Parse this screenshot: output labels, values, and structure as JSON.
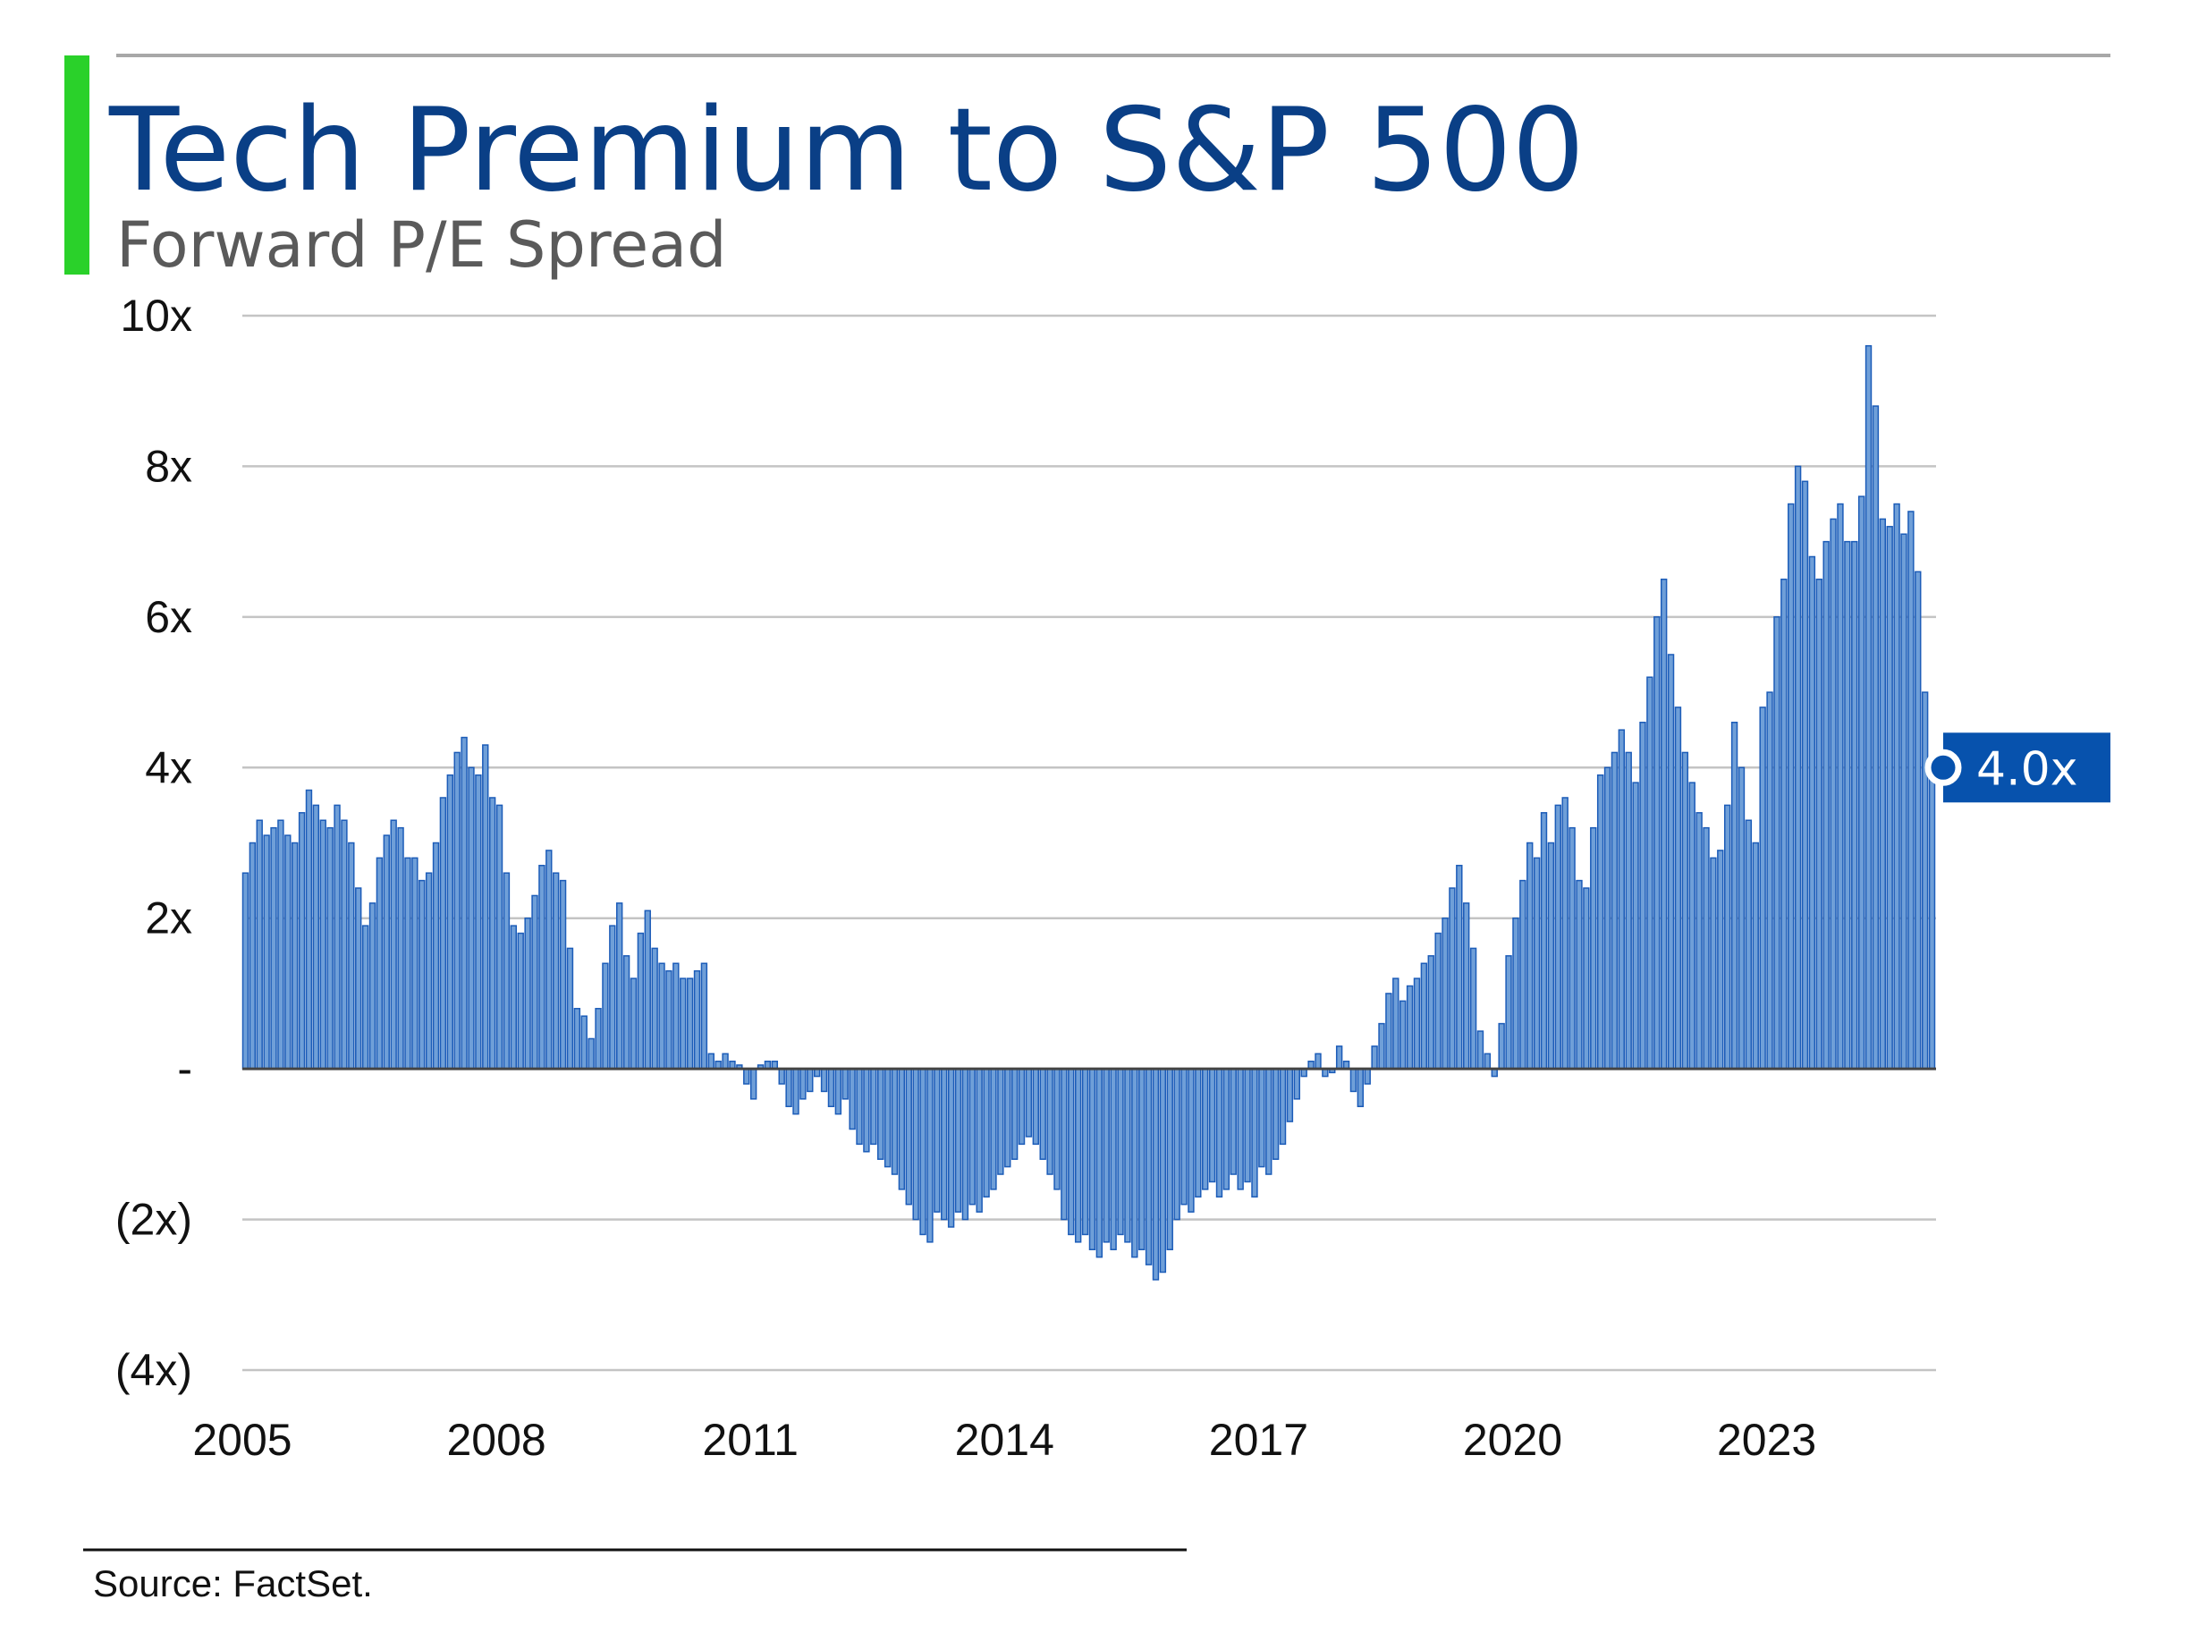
{
  "chart_data": {
    "type": "bar",
    "title": "Tech Premium to S&P 500",
    "subtitle": "Forward P/E Spread",
    "xlabel": "",
    "ylabel": "",
    "x_start": 2005,
    "x_end": 2025,
    "frequency": "monthly",
    "ylim": [
      -4,
      10
    ],
    "yticks": [
      10,
      8,
      6,
      4,
      2,
      0,
      -2,
      -4
    ],
    "ytick_labels": [
      "10x",
      "8x",
      "6x",
      "4x",
      "2x",
      "-",
      "(2x)",
      "(4x)"
    ],
    "xticks": [
      2005,
      2008,
      2011,
      2014,
      2017,
      2020,
      2023
    ],
    "xtick_labels": [
      "2005",
      "2008",
      "2011",
      "2014",
      "2017",
      "2020",
      "2023"
    ],
    "grid": true,
    "bar_color": "#6f9fd8",
    "bar_edge_color": "#1c5cb8",
    "values": [
      2.6,
      3.0,
      3.3,
      3.1,
      3.2,
      3.3,
      3.1,
      3.0,
      3.4,
      3.7,
      3.5,
      3.3,
      3.2,
      3.5,
      3.3,
      3.0,
      2.4,
      1.9,
      2.2,
      2.8,
      3.1,
      3.3,
      3.2,
      2.8,
      2.8,
      2.5,
      2.6,
      3.0,
      3.6,
      3.9,
      4.2,
      4.4,
      4.0,
      3.9,
      4.3,
      3.6,
      3.5,
      2.6,
      1.9,
      1.8,
      2.0,
      2.3,
      2.7,
      2.9,
      2.6,
      2.5,
      1.6,
      0.8,
      0.7,
      0.4,
      0.8,
      1.4,
      1.9,
      2.2,
      1.5,
      1.2,
      1.8,
      2.1,
      1.6,
      1.4,
      1.3,
      1.4,
      1.2,
      1.2,
      1.3,
      1.4,
      0.2,
      0.1,
      0.2,
      0.1,
      0.05,
      -0.2,
      -0.4,
      0.05,
      0.1,
      0.1,
      -0.2,
      -0.5,
      -0.6,
      -0.4,
      -0.3,
      -0.1,
      -0.3,
      -0.5,
      -0.6,
      -0.4,
      -0.8,
      -1.0,
      -1.1,
      -1.0,
      -1.2,
      -1.3,
      -1.4,
      -1.6,
      -1.8,
      -2.0,
      -2.2,
      -2.3,
      -1.9,
      -2.0,
      -2.1,
      -1.9,
      -2.0,
      -1.8,
      -1.9,
      -1.7,
      -1.6,
      -1.4,
      -1.3,
      -1.2,
      -1.0,
      -0.9,
      -1.0,
      -1.2,
      -1.4,
      -1.6,
      -2.0,
      -2.2,
      -2.3,
      -2.2,
      -2.4,
      -2.5,
      -2.3,
      -2.4,
      -2.2,
      -2.3,
      -2.5,
      -2.4,
      -2.6,
      -2.8,
      -2.7,
      -2.4,
      -2.0,
      -1.8,
      -1.9,
      -1.7,
      -1.6,
      -1.5,
      -1.7,
      -1.6,
      -1.4,
      -1.6,
      -1.5,
      -1.7,
      -1.3,
      -1.4,
      -1.2,
      -1.0,
      -0.7,
      -0.4,
      -0.1,
      0.1,
      0.2,
      -0.1,
      -0.05,
      0.3,
      0.1,
      -0.3,
      -0.5,
      -0.2,
      0.3,
      0.6,
      1.0,
      1.2,
      0.9,
      1.1,
      1.2,
      1.4,
      1.5,
      1.8,
      2.0,
      2.4,
      2.7,
      2.2,
      1.6,
      0.5,
      0.2,
      -0.1,
      0.6,
      1.5,
      2.0,
      2.5,
      3.0,
      2.8,
      3.4,
      3.0,
      3.5,
      3.6,
      3.2,
      2.5,
      2.4,
      3.2,
      3.9,
      4.0,
      4.2,
      4.5,
      4.2,
      3.8,
      4.6,
      5.2,
      6.0,
      6.5,
      5.5,
      4.8,
      4.2,
      3.8,
      3.4,
      3.2,
      2.8,
      2.9,
      3.5,
      4.6,
      4.0,
      3.3,
      3.0,
      4.8,
      5.0,
      6.0,
      6.5,
      7.5,
      8.0,
      7.8,
      6.8,
      6.5,
      7.0,
      7.3,
      7.5,
      7.0,
      7.0,
      7.6,
      9.6,
      8.8,
      7.3,
      7.2,
      7.5,
      7.1,
      7.4,
      6.6,
      5.0,
      4.0
    ],
    "latest_value": 4.0,
    "latest_label": "4.0x",
    "annotation_color": "#0752ad",
    "source": "Source: FactSet."
  },
  "accent_color": "#2ad12a",
  "title_color": "#0a3f86"
}
